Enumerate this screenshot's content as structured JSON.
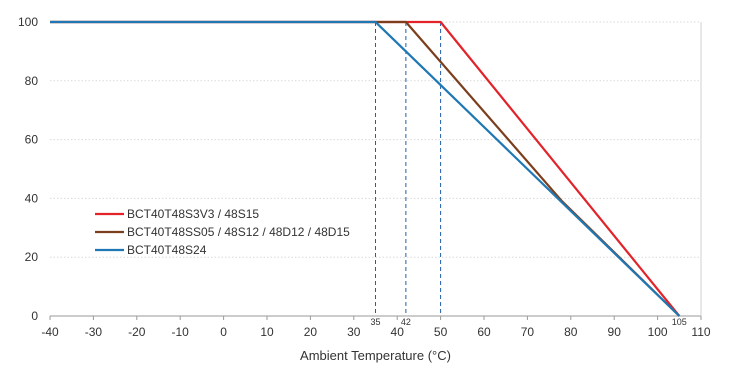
{
  "chart_data": {
    "type": "line",
    "title": "",
    "xlabel": "Ambient Temperature (°C)",
    "ylabel": "",
    "xlim": [
      -40,
      110
    ],
    "ylim": [
      0,
      100
    ],
    "xticks": [
      -40,
      -30,
      -20,
      -10,
      0,
      10,
      20,
      30,
      40,
      50,
      60,
      70,
      80,
      90,
      100,
      110
    ],
    "yticks": [
      0,
      20,
      40,
      60,
      80,
      100
    ],
    "grid": "horizontal",
    "legend_position": "left",
    "series": [
      {
        "name": "BCT40T48S3V3 / 48S15",
        "color": "#e2232a",
        "x": [
          -40,
          50,
          105
        ],
        "y": [
          100,
          100,
          0
        ]
      },
      {
        "name": "BCT40T48SS05 / 48S12 / 48D12 / 48D15",
        "color": "#7b3f1e",
        "x": [
          -40,
          42,
          78,
          105
        ],
        "y": [
          100,
          100,
          39,
          0
        ]
      },
      {
        "name": "BCT40T48S24",
        "color": "#1f77b4",
        "x": [
          -40,
          35,
          105
        ],
        "y": [
          100,
          100,
          0
        ]
      }
    ],
    "annotations": [
      {
        "x": 35,
        "label": "35"
      },
      {
        "x": 42,
        "label": "42"
      },
      {
        "x": 50,
        "label": ""
      },
      {
        "x": 105,
        "label": "105"
      }
    ]
  }
}
